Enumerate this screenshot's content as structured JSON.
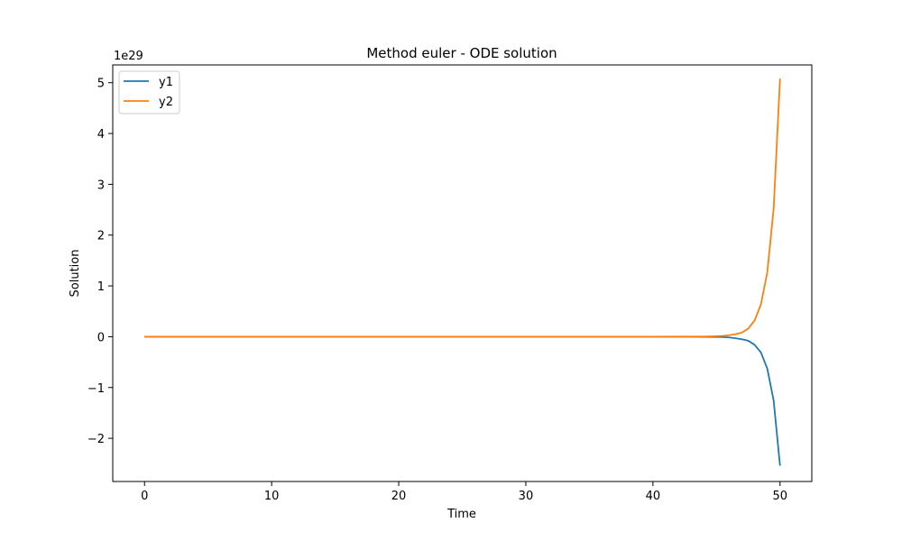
{
  "chart_data": {
    "type": "line",
    "title": "Method euler - ODE solution",
    "xlabel": "Time",
    "ylabel": "Solution",
    "offset_text": "1e29",
    "xlim": [
      -2.5,
      52.5
    ],
    "ylim": [
      -2.85,
      5.35
    ],
    "x_ticks": [
      0,
      10,
      20,
      30,
      40,
      50
    ],
    "x_tick_labels": [
      "0",
      "10",
      "20",
      "30",
      "40",
      "50"
    ],
    "y_ticks": [
      -2,
      -1,
      0,
      1,
      2,
      3,
      4,
      5
    ],
    "y_tick_labels": [
      "−2",
      "−1",
      "0",
      "1",
      "2",
      "3",
      "4",
      "5"
    ],
    "grid": false,
    "legend_position": "upper left",
    "series": [
      {
        "name": "y1",
        "color": "#1f77b4",
        "x": [
          0,
          40,
          44,
          45,
          45.5,
          46,
          46.5,
          47,
          47.5,
          48,
          48.5,
          49,
          49.5,
          50
        ],
        "y": [
          0,
          0,
          -0.002,
          -0.005,
          -0.008,
          -0.015,
          -0.03,
          -0.05,
          -0.08,
          -0.16,
          -0.31,
          -0.63,
          -1.26,
          -2.54
        ]
      },
      {
        "name": "y2",
        "color": "#ff7f0e",
        "x": [
          0,
          40,
          44,
          45,
          45.5,
          46,
          46.5,
          47,
          47.5,
          48,
          48.5,
          49,
          49.5,
          50
        ],
        "y": [
          0,
          0,
          0.003,
          0.01,
          0.016,
          0.03,
          0.05,
          0.08,
          0.16,
          0.32,
          0.64,
          1.27,
          2.53,
          5.08
        ]
      }
    ]
  }
}
